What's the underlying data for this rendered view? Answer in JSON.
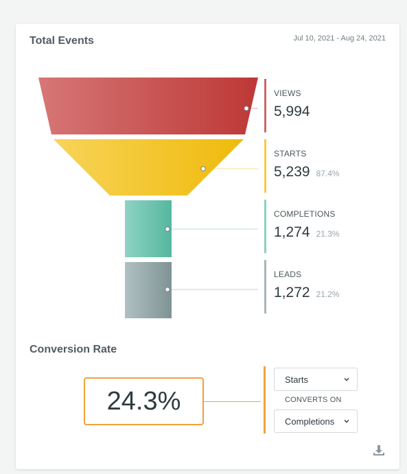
{
  "header": {
    "title": "Total Events",
    "date_range": "Jul 10, 2021 - Aug 24, 2021"
  },
  "chart_data": {
    "type": "funnel",
    "stages": [
      {
        "label": "VIEWS",
        "value": 5994,
        "value_text": "5,994",
        "percent_text": "",
        "color": "#c0393b"
      },
      {
        "label": "STARTS",
        "value": 5239,
        "value_text": "5,239",
        "percent_text": "87.4%",
        "color": "#f0bc12"
      },
      {
        "label": "COMPLETIONS",
        "value": 1274,
        "value_text": "1,274",
        "percent_text": "21.3%",
        "color": "#5fbda7"
      },
      {
        "label": "LEADS",
        "value": 1272,
        "value_text": "1,272",
        "percent_text": "21.2%",
        "color": "#86999c"
      }
    ]
  },
  "conversion": {
    "title": "Conversion Rate",
    "rate": "24.3%",
    "from_option": "Starts",
    "converts_on_label": "CONVERTS ON",
    "to_option": "Completions",
    "accent_color": "#f0a23a"
  },
  "icons": {
    "download": "download-icon",
    "chevron": "chevron-down-icon"
  }
}
